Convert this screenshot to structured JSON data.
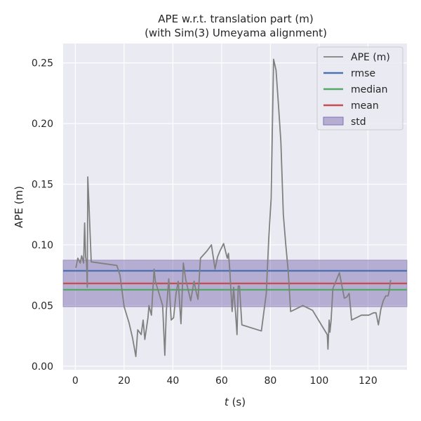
{
  "chart_data": {
    "type": "line",
    "title": "APE w.r.t. translation part (m)",
    "subtitle": "(with Sim(3) Umeyama alignment)",
    "xlabel_var": "t",
    "xlabel_unit": " (s)",
    "ylabel": "APE (m)",
    "xlim": [
      -5,
      136
    ],
    "ylim": [
      -0.003,
      0.266
    ],
    "xticks": [
      0,
      20,
      40,
      60,
      80,
      100,
      120
    ],
    "yticks": [
      0.0,
      0.05,
      0.1,
      0.15,
      0.2,
      0.25
    ],
    "xtick_labels": [
      "0",
      "20",
      "40",
      "60",
      "80",
      "100",
      "120"
    ],
    "ytick_labels": [
      "0.00",
      "0.05",
      "0.10",
      "0.15",
      "0.20",
      "0.25"
    ],
    "grid": true,
    "legend_position": "top-right",
    "series": [
      {
        "name": "APE (m)",
        "color": "#808080",
        "x": [
          0.2,
          1.0,
          2.0,
          2.6,
          3.4,
          3.8,
          4.2,
          4.6,
          4.9,
          5.1,
          5.6,
          6.5,
          17,
          18.3,
          20,
          22,
          23.5,
          24.8,
          25.6,
          27,
          27.8,
          28.5,
          29.8,
          30.2,
          31.2,
          32.3,
          32.8,
          35.8,
          36.7,
          37.3,
          38.3,
          39.3,
          40.3,
          41.3,
          42.2,
          43.3,
          44.3,
          45.3,
          47.3,
          48.7,
          49.6,
          50.3,
          51.3,
          54,
          55.8,
          57.3,
          58.3,
          59.3,
          60.8,
          62.3,
          62.8,
          63.3,
          64.3,
          64.9,
          65.7,
          66.3,
          66.8,
          67.3,
          68.3,
          76.3,
          78.3,
          79.3,
          80.3,
          81.3,
          82.3,
          83.3,
          84.3,
          85.3,
          86.3,
          87.3,
          88.3,
          89.3,
          93.3,
          97.3,
          103.3,
          103.6,
          104.1,
          104.4,
          104.9,
          105.6,
          108.3,
          110.3,
          111.3,
          112.3,
          113.3,
          115.3,
          117.3,
          120.3,
          122.3,
          123.3,
          124.3,
          125.3,
          126.3,
          127.3,
          128.3,
          128.8,
          129.3
        ],
        "y": [
          0.081,
          0.089,
          0.085,
          0.091,
          0.085,
          0.118,
          0.09,
          0.085,
          0.065,
          0.156,
          0.133,
          0.086,
          0.083,
          0.075,
          0.049,
          0.036,
          0.023,
          0.008,
          0.03,
          0.026,
          0.038,
          0.022,
          0.04,
          0.05,
          0.042,
          0.08,
          0.07,
          0.05,
          0.009,
          0.045,
          0.072,
          0.038,
          0.04,
          0.06,
          0.07,
          0.035,
          0.085,
          0.071,
          0.054,
          0.07,
          0.061,
          0.055,
          0.089,
          0.095,
          0.1,
          0.08,
          0.09,
          0.095,
          0.101,
          0.089,
          0.093,
          0.08,
          0.045,
          0.065,
          0.044,
          0.026,
          0.066,
          0.066,
          0.034,
          0.029,
          0.06,
          0.105,
          0.138,
          0.253,
          0.244,
          0.215,
          0.185,
          0.125,
          0.1,
          0.078,
          0.045,
          0.046,
          0.05,
          0.046,
          0.026,
          0.014,
          0.038,
          0.028,
          0.038,
          0.064,
          0.077,
          0.056,
          0.057,
          0.06,
          0.038,
          0.04,
          0.042,
          0.042,
          0.044,
          0.044,
          0.034,
          0.047,
          0.054,
          0.058,
          0.058,
          0.063,
          0.071
        ]
      }
    ],
    "hlines": [
      {
        "name": "rmse",
        "value": 0.0786,
        "color": "#4c72b0"
      },
      {
        "name": "median",
        "value": 0.063,
        "color": "#55a868"
      },
      {
        "name": "mean",
        "value": 0.0682,
        "color": "#c44e52"
      }
    ],
    "band": {
      "name": "std",
      "low": 0.049,
      "high": 0.0874,
      "color": "#8172b2"
    },
    "colors": {
      "plot_bg": "#eaeaf2",
      "grid": "#ffffff"
    }
  }
}
